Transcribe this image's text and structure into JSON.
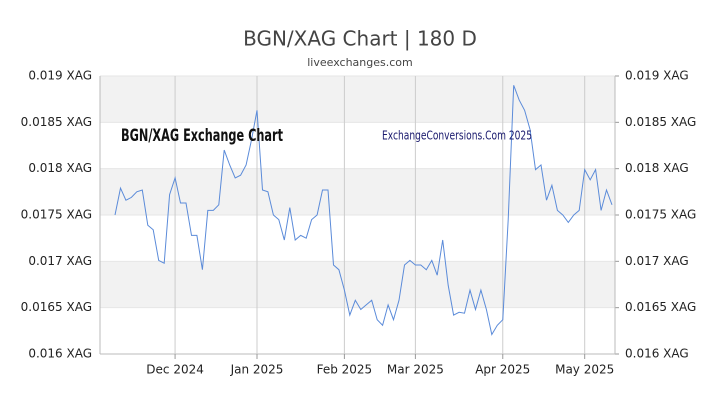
{
  "chart_data": {
    "type": "line",
    "title": "BGN/XAG Chart | 180 D",
    "subtitle": "liveexchanges.com",
    "annotations": [
      "BGN/XAG Exchange Chart",
      "ExchangeConversions.Com 2025"
    ],
    "categories": [
      null,
      null,
      null,
      null,
      null,
      null,
      null,
      null,
      null,
      null,
      null,
      "Dec 2024",
      null,
      null,
      null,
      null,
      null,
      null,
      null,
      null,
      null,
      null,
      null,
      null,
      null,
      null,
      "Jan 2025",
      null,
      null,
      null,
      null,
      null,
      null,
      null,
      null,
      null,
      null,
      null,
      null,
      null,
      null,
      null,
      "Feb 2025",
      null,
      null,
      null,
      null,
      null,
      null,
      null,
      null,
      null,
      null,
      null,
      null,
      "Mar 2025",
      null,
      null,
      null,
      null,
      null,
      null,
      null,
      null,
      null,
      null,
      null,
      null,
      null,
      null,
      null,
      "Apr 2025",
      null,
      null,
      null,
      null,
      null,
      null,
      null,
      null,
      null,
      null,
      null,
      null,
      null,
      null,
      "May 2025",
      null,
      null,
      null,
      null,
      null
    ],
    "series": [
      {
        "name": "BGN/XAG",
        "color": "#5b8bd9",
        "values": [
          0.0175,
          0.01779,
          0.01766,
          0.01769,
          0.01775,
          0.01777,
          0.01739,
          0.01734,
          0.01701,
          0.01698,
          0.01772,
          0.0179,
          0.01763,
          0.01763,
          0.01728,
          0.01728,
          0.01691,
          0.01755,
          0.01755,
          0.01761,
          0.0182,
          0.01804,
          0.0179,
          0.01793,
          0.01804,
          0.01831,
          0.01863,
          0.01777,
          0.01775,
          0.0175,
          0.01745,
          0.01723,
          0.01758,
          0.01723,
          0.01728,
          0.01725,
          0.01745,
          0.0175,
          0.01777,
          0.01777,
          0.01696,
          0.01691,
          0.01669,
          0.01642,
          0.01658,
          0.01648,
          0.01653,
          0.01658,
          0.01637,
          0.01631,
          0.01653,
          0.01637,
          0.01658,
          0.01696,
          0.01701,
          0.01696,
          0.01696,
          0.01691,
          0.01701,
          0.01685,
          0.01723,
          0.01674,
          0.01642,
          0.01645,
          0.01644,
          0.01669,
          0.01648,
          0.01669,
          0.01648,
          0.01621,
          0.01631,
          0.01637,
          0.01745,
          0.0189,
          0.01874,
          0.01863,
          0.01842,
          0.01799,
          0.01804,
          0.01766,
          0.01782,
          0.01755,
          0.0175,
          0.01742,
          0.0175,
          0.01755,
          0.01799,
          0.01788,
          0.01799,
          0.01755,
          0.01777,
          0.01761
        ]
      }
    ],
    "ylim": [
      0.016,
      0.019
    ],
    "yticks": [
      {
        "value": 0.016,
        "label": "0.016 XAG"
      },
      {
        "value": 0.0165,
        "label": "0.0165 XAG"
      },
      {
        "value": 0.017,
        "label": "0.017 XAG"
      },
      {
        "value": 0.0175,
        "label": "0.0175 XAG"
      },
      {
        "value": 0.018,
        "label": "0.018 XAG"
      },
      {
        "value": 0.0185,
        "label": "0.0185 XAG"
      },
      {
        "value": 0.019,
        "label": "0.019 XAG"
      }
    ],
    "y2lim": [
      0.016,
      0.019
    ],
    "y2ticks": [
      {
        "value": 0.016,
        "label": "0.016 XAG"
      },
      {
        "value": 0.0165,
        "label": "0.0165 XAG"
      },
      {
        "value": 0.017,
        "label": "0.017 XAG"
      },
      {
        "value": 0.0175,
        "label": "0.0175 XAG"
      },
      {
        "value": 0.018,
        "label": "0.018 XAG"
      },
      {
        "value": 0.0185,
        "label": "0.0185 XAG"
      },
      {
        "value": 0.019,
        "label": "0.019 XAG"
      }
    ],
    "grid": true
  }
}
